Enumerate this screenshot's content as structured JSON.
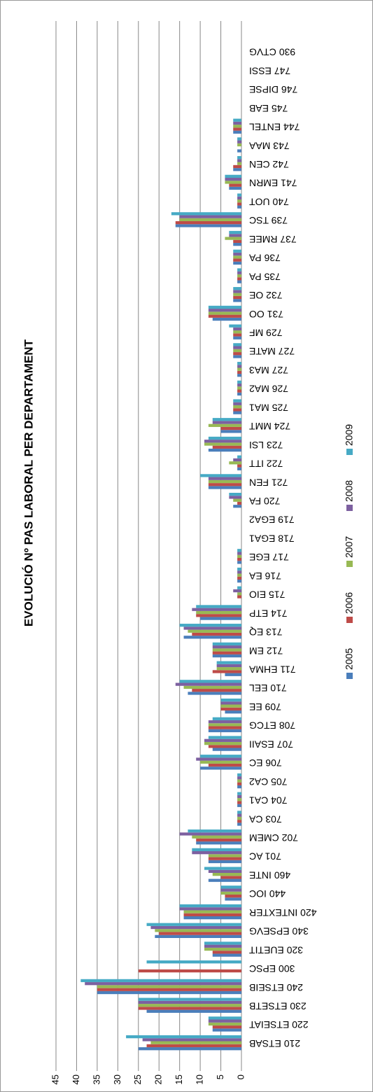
{
  "chart_data": {
    "type": "bar",
    "title": "EVOLUCIÓ Nº PAS LABORAL PER DEPARTAMENT",
    "categories": [
      "210 ETSAB",
      "220 ETSEIAT",
      "230 ETSETB",
      "240 ETSEIB",
      "300 EPSC",
      "320 EUETIT",
      "340 EPSEVG",
      "420 INTEXTER",
      "440 IOC",
      "460 INTE",
      "701 AC",
      "702 CMEM",
      "703 CA",
      "704 CA1",
      "705 CA2",
      "706 EC",
      "707 ESAII",
      "708 ETCG",
      "709 EE",
      "710 EEL",
      "711 EHMA",
      "712 EM",
      "713 EQ",
      "714 ETP",
      "715 EIO",
      "716 EA",
      "717 EGE",
      "718 EGA1",
      "719 EGA2",
      "720 FA",
      "721 FEN",
      "722 ITT",
      "723 LSI",
      "724 MMT",
      "725 MA1",
      "726 MA2",
      "727 MA3",
      "727 MATE",
      "729 MF",
      "731 OO",
      "732 OE",
      "735 PA",
      "736 PA",
      "737 RMEE",
      "739 TSC",
      "740 UOT",
      "741 EMRN",
      "742 CEN",
      "743 MAA",
      "744 ENTEL",
      "745 EAB",
      "746 DIPSE",
      "747 ESSI",
      "930 CTVG"
    ],
    "series": [
      {
        "name": "2005",
        "color": "#4a7ebb",
        "values": [
          25,
          7,
          23,
          35,
          0,
          7,
          21,
          14,
          4,
          8,
          8,
          11,
          1,
          1,
          1,
          10,
          7,
          8,
          4,
          13,
          4,
          7,
          14,
          10,
          0,
          1,
          1,
          0,
          0,
          2,
          8,
          1,
          8,
          5,
          2,
          1,
          1,
          2,
          2,
          7,
          2,
          1,
          2,
          2,
          16,
          1,
          3,
          2,
          1,
          2,
          0,
          0,
          0,
          0
        ]
      },
      {
        "name": "2006",
        "color": "#be4b48",
        "values": [
          23,
          7,
          25,
          35,
          25,
          7,
          20,
          14,
          4,
          5,
          8,
          11,
          1,
          1,
          1,
          8,
          8,
          8,
          5,
          12,
          7,
          7,
          12,
          11,
          1,
          1,
          1,
          0,
          0,
          1,
          8,
          1,
          7,
          5,
          2,
          1,
          1,
          2,
          2,
          8,
          2,
          1,
          2,
          2,
          16,
          1,
          3,
          2,
          0,
          2,
          0,
          0,
          0,
          0
        ]
      },
      {
        "name": "2007",
        "color": "#98b954",
        "values": [
          22,
          8,
          25,
          35,
          0,
          9,
          21,
          14,
          5,
          7,
          8,
          12,
          1,
          1,
          1,
          10,
          9,
          8,
          5,
          14,
          6,
          7,
          13,
          11,
          1,
          1,
          1,
          0,
          0,
          2,
          8,
          3,
          9,
          8,
          2,
          1,
          1,
          2,
          2,
          8,
          2,
          1,
          2,
          4,
          15,
          1,
          4,
          1,
          1,
          2,
          0,
          0,
          0,
          0
        ]
      },
      {
        "name": "2008",
        "color": "#7d60a0",
        "values": [
          24,
          8,
          25,
          38,
          0,
          9,
          22,
          15,
          5,
          8,
          12,
          15,
          1,
          1,
          1,
          11,
          9,
          8,
          5,
          16,
          6,
          7,
          14,
          12,
          2,
          1,
          1,
          0,
          0,
          3,
          8,
          2,
          9,
          7,
          2,
          1,
          1,
          2,
          2,
          8,
          2,
          1,
          2,
          3,
          15,
          1,
          4,
          1,
          1,
          2,
          0,
          0,
          0,
          0
        ]
      },
      {
        "name": "2009",
        "color": "#46aac5",
        "values": [
          28,
          8,
          25,
          39,
          23,
          9,
          23,
          15,
          5,
          9,
          12,
          13,
          1,
          1,
          1,
          10,
          8,
          7,
          5,
          15,
          6,
          7,
          15,
          11,
          1,
          1,
          1,
          0,
          0,
          3,
          10,
          1,
          8,
          7,
          2,
          1,
          1,
          2,
          3,
          8,
          2,
          1,
          2,
          3,
          17,
          1,
          4,
          1,
          1,
          2,
          0,
          0,
          0,
          0
        ]
      }
    ],
    "ylim": [
      0,
      45
    ],
    "yticks": [
      0,
      5,
      10,
      15,
      20,
      25,
      30,
      35,
      40,
      45
    ],
    "grid": true
  }
}
